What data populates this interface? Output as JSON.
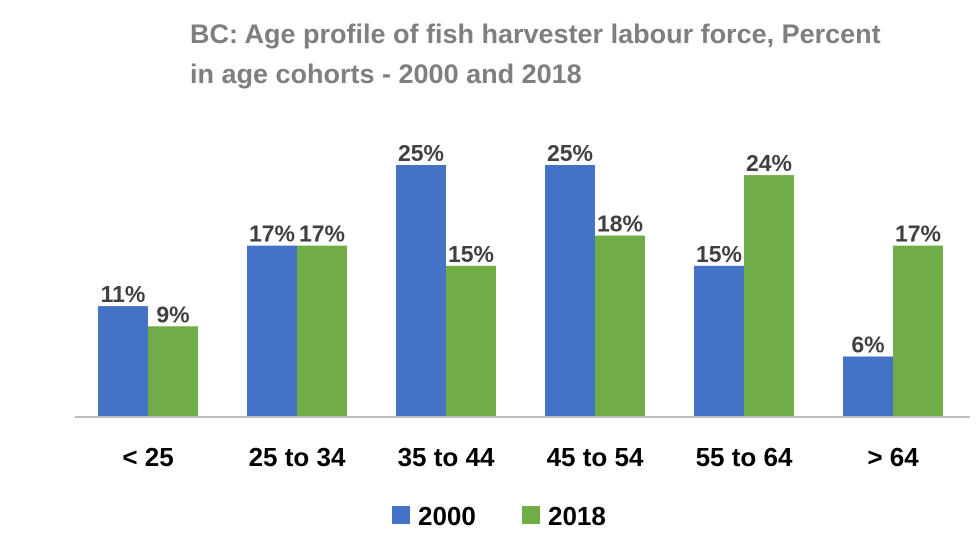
{
  "chart_data": {
    "type": "bar",
    "title_line1": "BC: Age profile of fish harvester labour force, Percent",
    "title_line2": "in age cohorts - 2000 and 2018",
    "categories": [
      "< 25",
      "25 to 34",
      "35 to 44",
      "45 to 54",
      "55 to 64",
      "> 64"
    ],
    "series": [
      {
        "name": "2000",
        "color": "#4472c4",
        "values": [
          11,
          17,
          25,
          25,
          15,
          6
        ],
        "labels": [
          "11%",
          "17%",
          "25%",
          "25%",
          "15%",
          "6%"
        ]
      },
      {
        "name": "2018",
        "color": "#70ad47",
        "values": [
          9,
          17,
          15,
          18,
          24,
          17
        ],
        "labels": [
          "9%",
          "17%",
          "15%",
          "18%",
          "24%",
          "17%"
        ]
      }
    ],
    "ylim": [
      0,
      25
    ],
    "unit": "%",
    "grid": false,
    "legend_position": "bottom"
  }
}
